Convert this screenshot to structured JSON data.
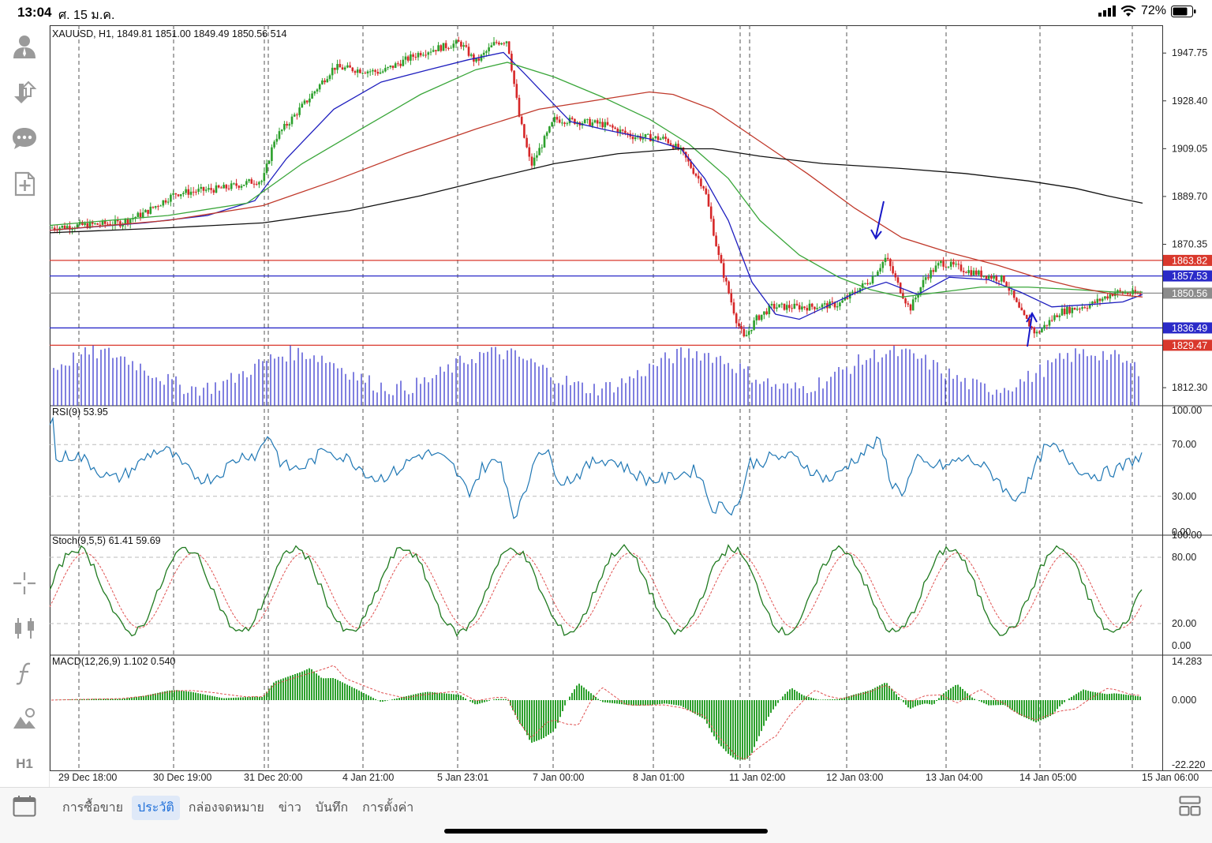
{
  "status_bar": {
    "time": "13:04",
    "date": "ศ. 15 ม.ค.",
    "battery": "72%"
  },
  "chart_info": {
    "symbol_line": "XAUUSD, H1, 1849.81 1851.00 1849.49 1850.56 514",
    "rsi_label": "RSI(9) 53.95",
    "stoch_label": "Stoch(9,5,5) 61.41 59.69",
    "macd_label": "MACD(12,26,9) 1.102 0.540"
  },
  "colors": {
    "bull": "#2ca02c",
    "bear": "#d62728",
    "ma_fast": "#1f1fbf",
    "ma_mid": "#3aa63a",
    "ma_slow": "#c0392b",
    "ma_long": "#111111",
    "volume": "#3b3bd0",
    "rsi": "#1f77b4"
  },
  "price_axis": [
    "1947.75",
    "1928.40",
    "1909.05",
    "1889.70",
    "1870.35",
    "1812.30"
  ],
  "price_levels": [
    {
      "label": "1863.82",
      "color": "#d9382c"
    },
    {
      "label": "1857.53",
      "color": "#2a2ac8"
    },
    {
      "label": "1850.56",
      "color": "#8c8c8c"
    },
    {
      "label": "1836.49",
      "color": "#2a2ac8"
    },
    {
      "label": "1829.47",
      "color": "#d9382c"
    }
  ],
  "rsi_axis": [
    "100.00",
    "70.00",
    "30.00",
    "0.00"
  ],
  "stoch_axis": [
    "100.00",
    "80.00",
    "20.00",
    "0.00"
  ],
  "macd_axis": [
    "14.283",
    "0.000",
    "-22.220"
  ],
  "time_axis": [
    "29 Dec 18:00",
    "30 Dec 19:00",
    "31 Dec 20:00",
    "4 Jan 21:00",
    "5 Jan 23:01",
    "7 Jan 00:00",
    "8 Jan 01:00",
    "11 Jan 02:00",
    "12 Jan 03:00",
    "13 Jan 04:00",
    "14 Jan 05:00",
    "15 Jan 06:00"
  ],
  "toolbar_icons": [
    "account-icon",
    "trade-arrows-icon",
    "chat-icon",
    "new-order-icon",
    "crosshair-icon",
    "indicators-icon",
    "function-icon",
    "objects-icon"
  ],
  "timeframe": "H1",
  "bottom_tabs": [
    {
      "label": "การซื้อขาย",
      "active": false
    },
    {
      "label": "ประวัติ",
      "active": true
    },
    {
      "label": "กล่องจดหมาย",
      "active": false
    },
    {
      "label": "ข่าว",
      "active": false
    },
    {
      "label": "บันทึก",
      "active": false
    },
    {
      "label": "การตั้งค่า",
      "active": false
    }
  ]
}
